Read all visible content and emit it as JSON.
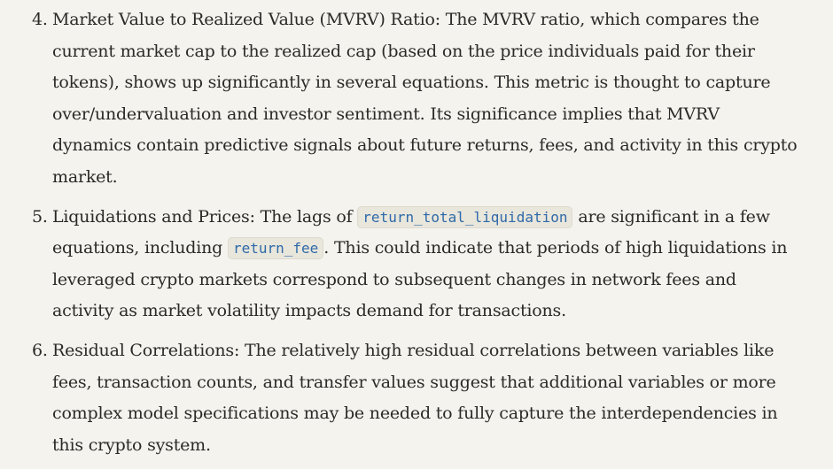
{
  "items": [
    {
      "number": "4.",
      "text": "Market Value to Realized Value (MVRV) Ratio: The MVRV ratio, which compares the current market cap to the realized cap (based on the price individuals paid for their tokens), shows up significantly in several equations. This metric is thought to capture over/undervaluation and investor sentiment. Its significance implies that MVRV dynamics contain predictive signals about future returns, fees, and activity in this crypto market."
    },
    {
      "number": "5.",
      "text_before_code1": "Liquidations and Prices: The lags of ",
      "code1": "return_total_liquidation",
      "text_between": " are significant in a few equations, including ",
      "code2": "return_fee",
      "text_after": ". This could indicate that periods of high liquidations in leveraged crypto markets correspond to subsequent changes in network fees and activity as market volatility impacts demand for transactions."
    },
    {
      "number": "6.",
      "text": "Residual Correlations: The relatively high residual correlations between variables like fees, transaction counts, and transfer values suggest that additional variables or more complex model specifications may be needed to fully capture the interdependencies in this crypto system."
    }
  ]
}
